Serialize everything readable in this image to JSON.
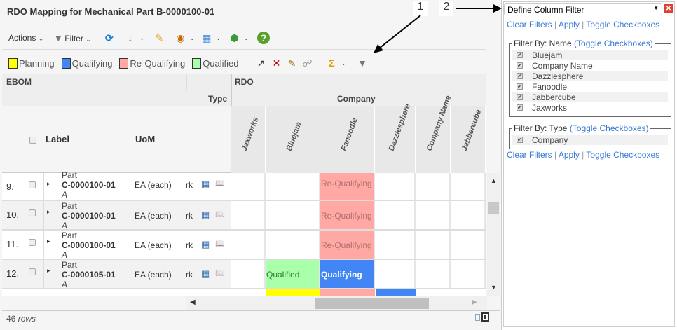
{
  "title": "RDO Mapping for Mechanical Part B-0000100-01",
  "toolbar": {
    "actions": "Actions",
    "filter": "Filter"
  },
  "legend": [
    {
      "label": "Planning",
      "color": "#ffff00"
    },
    {
      "label": "Qualifying",
      "color": "#4285f4"
    },
    {
      "label": "Re-Qualifying",
      "color": "#ffa8a4"
    },
    {
      "label": "Qualified",
      "color": "#aaffaa"
    }
  ],
  "table": {
    "group_left": "EBOM",
    "group_right": "RDO",
    "type_label": "Type",
    "company_label": "Company",
    "col_label": "Label",
    "col_uom": "UoM",
    "rdo_columns": [
      "Jaxworks",
      "Bluejam",
      "Fanoodle",
      "Dazzlesphere",
      "Company Name",
      "Jabbercube"
    ],
    "rows": [
      {
        "num": "9.",
        "type": "Part",
        "name": "C-0000100-01",
        "rev": "A",
        "uom": "EA (each)",
        "trunc": "rk",
        "cells": [
          "",
          "",
          "Re-Qualifying",
          "",
          "",
          ""
        ]
      },
      {
        "num": "10.",
        "type": "Part",
        "name": "C-0000100-01",
        "rev": "A",
        "uom": "EA (each)",
        "trunc": "rk",
        "cells": [
          "",
          "",
          "Re-Qualifying",
          "",
          "",
          ""
        ]
      },
      {
        "num": "11.",
        "type": "Part",
        "name": "C-0000100-01",
        "rev": "A",
        "uom": "EA (each)",
        "trunc": "rk",
        "cells": [
          "",
          "",
          "Re-Qualifying",
          "",
          "",
          ""
        ]
      },
      {
        "num": "12.",
        "type": "Part",
        "name": "C-0000105-01",
        "rev": "A",
        "uom": "EA (each)",
        "trunc": "rk",
        "cells": [
          "",
          "Qualified",
          "Qualifying",
          "",
          "",
          ""
        ]
      }
    ],
    "row_count": "46",
    "row_count_unit": "rows"
  },
  "annotations": {
    "one": "1",
    "two": "2"
  },
  "filter_panel": {
    "title": "Define Column Filter",
    "links": [
      "Clear Filters",
      "Apply",
      "Toggle Checkboxes"
    ],
    "by_name": {
      "label": "Filter By: Name",
      "toggle": "(Toggle Checkboxes)",
      "items": [
        "Bluejam",
        "Company Name",
        "Dazzlesphere",
        "Fanoodle",
        "Jabbercube",
        "Jaxworks"
      ]
    },
    "by_type": {
      "label": "Filter By: Type",
      "toggle": "(Toggle Checkboxes)",
      "items": [
        "Company"
      ]
    }
  }
}
